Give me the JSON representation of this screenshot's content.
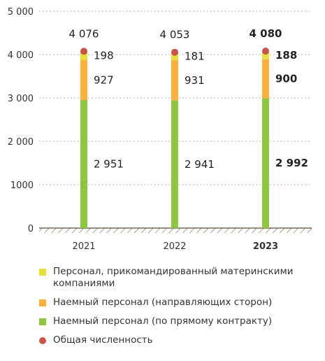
{
  "chart_data": {
    "type": "bar",
    "stacked": true,
    "categories": [
      "2021",
      "2022",
      "2023"
    ],
    "highlight_category": "2023",
    "ylim": [
      0,
      5000
    ],
    "yticks": [
      0,
      1000,
      2000,
      3000,
      4000,
      5000
    ],
    "ytick_labels": [
      "0",
      "1000",
      "2 000",
      "3 000",
      "4 000",
      "5 000"
    ],
    "grid": "horizontal-dashed",
    "legend_position": "bottom",
    "series": [
      {
        "name": "Наемный персонал (по прямому контракту)",
        "color": "#8dc63f",
        "values": [
          2951,
          2941,
          2992
        ],
        "labels": [
          "2 951",
          "2 941",
          "2 992"
        ]
      },
      {
        "name": "Наемный персонал (направляющих сторон)",
        "color": "#fbb040",
        "values": [
          927,
          931,
          900
        ],
        "labels": [
          "927",
          "931",
          "900"
        ]
      },
      {
        "name": "Персонал, прикомандированный материнскими компаниями",
        "color": "#e5e03a",
        "values": [
          198,
          181,
          188
        ],
        "labels": [
          "198",
          "181",
          "188"
        ]
      }
    ],
    "total": {
      "name": "Общая численность",
      "color": "#c8534a",
      "values": [
        4076,
        4053,
        4080
      ],
      "labels": [
        "4 076",
        "4 053",
        "4 080"
      ]
    }
  }
}
